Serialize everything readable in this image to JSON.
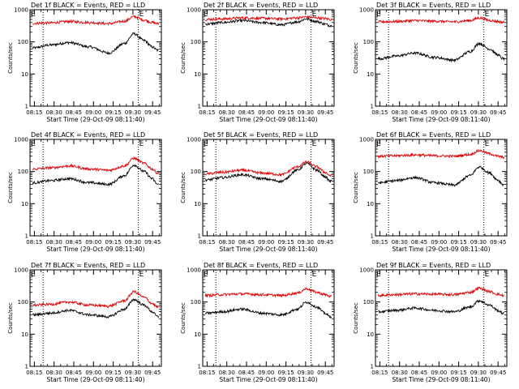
{
  "colors": {
    "events": "#000000",
    "lld": "#e00000",
    "axes": "#000000",
    "background": "#ffffff"
  },
  "chart_data": [
    {
      "type": "line",
      "title": "Det 1f BLACK = Events, RED = LLD",
      "xlabel": "Start Time (29-Oct-09 08:11:40)",
      "ylabel": "Counts/sec",
      "ylog": true,
      "ylim": [
        1,
        1000
      ],
      "xticks": [
        "08:15",
        "08:30",
        "08:45",
        "09:00",
        "09:15",
        "09:30",
        "09:45"
      ],
      "yticks": [
        "1",
        "10",
        "100",
        "1000"
      ],
      "markers": [
        "E",
        "E"
      ],
      "marker_times": [
        0,
        79
      ],
      "series": [
        {
          "color": "#000000",
          "x": [
            3,
            15,
            30,
            45,
            60,
            72,
            79,
            87,
            93,
            97
          ],
          "y": [
            65,
            80,
            95,
            70,
            45,
            90,
            180,
            110,
            70,
            55
          ]
        },
        {
          "color": "#e00000",
          "x": [
            3,
            15,
            30,
            45,
            60,
            72,
            79,
            87,
            93,
            97
          ],
          "y": [
            380,
            390,
            430,
            400,
            370,
            440,
            610,
            480,
            400,
            370
          ]
        }
      ]
    },
    {
      "type": "line",
      "title": "Det 2f BLACK = Events, RED = LLD",
      "xlabel": "Start Time (29-Oct-09 08:11:40)",
      "ylabel": "Counts/sec",
      "ylog": true,
      "ylim": [
        1,
        1000
      ],
      "xticks": [
        "08:15",
        "08:30",
        "08:45",
        "09:00",
        "09:15",
        "09:30",
        "09:45"
      ],
      "yticks": [
        "1",
        "10",
        "100",
        "1000"
      ],
      "markers": [
        "E",
        "E"
      ],
      "marker_times": [
        0,
        79
      ],
      "series": [
        {
          "color": "#000000",
          "x": [
            3,
            15,
            30,
            45,
            60,
            72,
            79,
            87,
            93,
            97
          ],
          "y": [
            360,
            400,
            460,
            400,
            340,
            420,
            520,
            430,
            360,
            320
          ]
        },
        {
          "color": "#e00000",
          "x": [
            3,
            15,
            30,
            45,
            60,
            72,
            79,
            87,
            93,
            97
          ],
          "y": [
            500,
            520,
            560,
            540,
            520,
            560,
            600,
            560,
            530,
            500
          ]
        }
      ]
    },
    {
      "type": "line",
      "title": "Det 3f BLACK = Events, RED = LLD",
      "xlabel": "Start Time (29-Oct-09 08:11:40)",
      "ylabel": "Counts/sec",
      "ylog": true,
      "ylim": [
        1,
        1000
      ],
      "xticks": [
        "08:15",
        "08:30",
        "08:45",
        "09:00",
        "09:15",
        "09:30",
        "09:45"
      ],
      "yticks": [
        "1",
        "10",
        "100",
        "1000"
      ],
      "markers": [
        "E",
        "E"
      ],
      "marker_times": [
        0,
        79
      ],
      "series": [
        {
          "color": "#000000",
          "x": [
            3,
            15,
            30,
            45,
            60,
            72,
            79,
            87,
            93,
            97
          ],
          "y": [
            30,
            36,
            45,
            33,
            27,
            50,
            90,
            60,
            40,
            30
          ]
        },
        {
          "color": "#e00000",
          "x": [
            3,
            15,
            30,
            45,
            60,
            72,
            79,
            87,
            93,
            97
          ],
          "y": [
            420,
            430,
            460,
            440,
            420,
            460,
            560,
            470,
            430,
            410
          ]
        }
      ]
    },
    {
      "type": "line",
      "title": "Det 4f BLACK = Events, RED = LLD",
      "xlabel": "Start Time (29-Oct-09 08:11:40)",
      "ylabel": "Counts/sec",
      "ylog": true,
      "ylim": [
        1,
        1000
      ],
      "xticks": [
        "08:15",
        "08:30",
        "08:45",
        "09:00",
        "09:15",
        "09:30",
        "09:45"
      ],
      "yticks": [
        "1",
        "10",
        "100",
        "1000"
      ],
      "markers": [
        "E",
        "E"
      ],
      "marker_times": [
        0,
        79
      ],
      "series": [
        {
          "color": "#000000",
          "x": [
            3,
            15,
            30,
            45,
            60,
            72,
            79,
            87,
            93,
            97
          ],
          "y": [
            45,
            52,
            60,
            45,
            40,
            75,
            160,
            100,
            60,
            40
          ]
        },
        {
          "color": "#e00000",
          "x": [
            3,
            15,
            30,
            45,
            60,
            72,
            79,
            87,
            93,
            97
          ],
          "y": [
            120,
            130,
            150,
            120,
            110,
            150,
            260,
            180,
            120,
            90
          ]
        }
      ]
    },
    {
      "type": "line",
      "title": "Det 5f BLACK = Events, RED = LLD",
      "xlabel": "Start Time (29-Oct-09 08:11:40)",
      "ylabel": "Counts/sec",
      "ylog": true,
      "ylim": [
        1,
        1000
      ],
      "xticks": [
        "08:15",
        "08:30",
        "08:45",
        "09:00",
        "09:15",
        "09:30",
        "09:45"
      ],
      "yticks": [
        "1",
        "10",
        "100",
        "1000"
      ],
      "markers": [
        "E",
        "E"
      ],
      "marker_times": [
        0,
        79
      ],
      "series": [
        {
          "color": "#000000",
          "x": [
            3,
            15,
            30,
            45,
            60,
            72,
            79,
            87,
            93,
            97
          ],
          "y": [
            55,
            65,
            80,
            60,
            50,
            110,
            180,
            110,
            70,
            50
          ]
        },
        {
          "color": "#e00000",
          "x": [
            3,
            15,
            30,
            45,
            60,
            72,
            79,
            87,
            93,
            97
          ],
          "y": [
            85,
            95,
            110,
            90,
            80,
            140,
            200,
            140,
            95,
            75
          ]
        }
      ]
    },
    {
      "type": "line",
      "title": "Det 6f BLACK = Events, RED = LLD",
      "xlabel": "Start Time (29-Oct-09 08:11:40)",
      "ylabel": "Counts/sec",
      "ylog": true,
      "ylim": [
        1,
        1000
      ],
      "xticks": [
        "08:15",
        "08:30",
        "08:45",
        "09:00",
        "09:15",
        "09:30",
        "09:45"
      ],
      "yticks": [
        "1",
        "10",
        "100",
        "1000"
      ],
      "markers": [
        "E",
        "E"
      ],
      "marker_times": [
        0,
        79
      ],
      "series": [
        {
          "color": "#000000",
          "x": [
            3,
            15,
            30,
            45,
            60,
            72,
            79,
            87,
            93,
            97
          ],
          "y": [
            45,
            52,
            65,
            45,
            38,
            75,
            140,
            90,
            55,
            40
          ]
        },
        {
          "color": "#e00000",
          "x": [
            3,
            15,
            30,
            45,
            60,
            72,
            79,
            87,
            93,
            97
          ],
          "y": [
            300,
            310,
            330,
            310,
            300,
            340,
            450,
            360,
            300,
            280
          ]
        }
      ]
    },
    {
      "type": "line",
      "title": "Det 7f BLACK = Events, RED = LLD",
      "xlabel": "Start Time (29-Oct-09 08:11:40)",
      "ylabel": "Counts/sec",
      "ylog": true,
      "ylim": [
        1,
        1000
      ],
      "xticks": [
        "08:15",
        "08:30",
        "08:45",
        "09:00",
        "09:15",
        "09:30",
        "09:45"
      ],
      "yticks": [
        "1",
        "10",
        "100",
        "1000"
      ],
      "markers": [
        "E",
        "E"
      ],
      "marker_times": [
        0,
        79
      ],
      "series": [
        {
          "color": "#000000",
          "x": [
            3,
            15,
            30,
            45,
            60,
            72,
            79,
            87,
            93,
            97
          ],
          "y": [
            40,
            45,
            55,
            40,
            35,
            60,
            120,
            80,
            50,
            35
          ]
        },
        {
          "color": "#e00000",
          "x": [
            3,
            15,
            30,
            45,
            60,
            72,
            79,
            87,
            93,
            97
          ],
          "y": [
            80,
            85,
            100,
            80,
            75,
            110,
            210,
            140,
            90,
            70
          ]
        }
      ]
    },
    {
      "type": "line",
      "title": "Det 8f BLACK = Events, RED = LLD",
      "xlabel": "Start Time (29-Oct-09 08:11:40)",
      "ylabel": "Counts/sec",
      "ylog": true,
      "ylim": [
        1,
        1000
      ],
      "xticks": [
        "08:15",
        "08:30",
        "08:45",
        "09:00",
        "09:15",
        "09:30",
        "09:45"
      ],
      "yticks": [
        "1",
        "10",
        "100",
        "1000"
      ],
      "markers": [
        "E",
        "E"
      ],
      "marker_times": [
        0,
        79
      ],
      "series": [
        {
          "color": "#000000",
          "x": [
            3,
            15,
            30,
            45,
            60,
            72,
            79,
            87,
            93,
            97
          ],
          "y": [
            45,
            50,
            60,
            45,
            40,
            60,
            100,
            70,
            45,
            35
          ]
        },
        {
          "color": "#e00000",
          "x": [
            3,
            15,
            30,
            45,
            60,
            72,
            79,
            87,
            93,
            97
          ],
          "y": [
            160,
            170,
            180,
            170,
            160,
            190,
            260,
            200,
            170,
            150
          ]
        }
      ]
    },
    {
      "type": "line",
      "title": "Det 9f BLACK = Events, RED = LLD",
      "xlabel": "Start Time (29-Oct-09 08:11:40)",
      "ylabel": "Counts/sec",
      "ylog": true,
      "ylim": [
        1,
        1000
      ],
      "xticks": [
        "08:15",
        "08:30",
        "08:45",
        "09:00",
        "09:15",
        "09:30",
        "09:45"
      ],
      "yticks": [
        "1",
        "10",
        "100",
        "1000"
      ],
      "markers": [
        "E",
        "E"
      ],
      "marker_times": [
        0,
        79
      ],
      "series": [
        {
          "color": "#000000",
          "x": [
            3,
            15,
            30,
            45,
            60,
            72,
            79,
            87,
            93,
            97
          ],
          "y": [
            50,
            55,
            65,
            55,
            50,
            70,
            110,
            80,
            55,
            45
          ]
        },
        {
          "color": "#e00000",
          "x": [
            3,
            15,
            30,
            45,
            60,
            72,
            79,
            87,
            93,
            97
          ],
          "y": [
            160,
            170,
            180,
            175,
            170,
            200,
            270,
            210,
            175,
            160
          ]
        }
      ]
    }
  ]
}
